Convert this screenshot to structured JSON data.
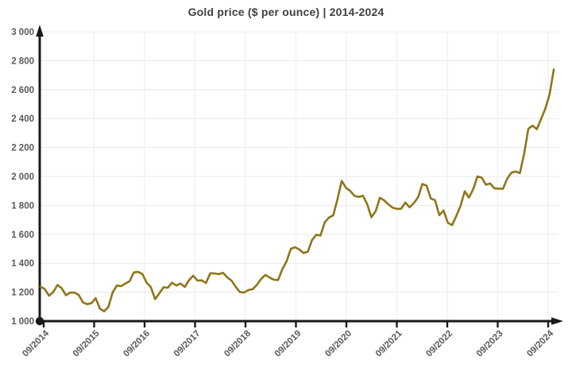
{
  "title": "Gold price ($ per ounce) | 2014-2024",
  "colors": {
    "line": "#8e7618",
    "title_text": "#404040",
    "tick_label": "#595959",
    "axis": "#1a1a1a",
    "h_grid": "#e8e8e8",
    "v_grid": "#eeeeee",
    "background": "#ffffff"
  },
  "chart_data": {
    "type": "line",
    "title": "Gold price ($ per ounce) | 2014-2024",
    "xlabel": "",
    "ylabel": "",
    "ylim": [
      1000,
      3000
    ],
    "y_step": 200,
    "y_tick_labels": [
      "1 000",
      "1 200",
      "1 400",
      "1 600",
      "1 800",
      "2 000",
      "2 200",
      "2 400",
      "2 600",
      "2 800",
      "3 000"
    ],
    "x_tick_labels": [
      "09/2014",
      "09/2015",
      "09/2016",
      "09/2017",
      "09/2018",
      "09/2019",
      "09/2020",
      "09/2021",
      "09/2022",
      "09/2023",
      "09/2024"
    ],
    "x_interval": "monthly",
    "x_start": "09/2014",
    "x_end": "10/2024",
    "grid": true,
    "legend_position": "none",
    "series": [
      {
        "name": "Gold price ($ per ounce)",
        "values": [
          1238,
          1222,
          1176,
          1201,
          1250,
          1227,
          1179,
          1197,
          1198,
          1181,
          1130,
          1117,
          1124,
          1159,
          1086,
          1068,
          1097,
          1199,
          1246,
          1242,
          1260,
          1276,
          1337,
          1340,
          1326,
          1266,
          1236,
          1152,
          1192,
          1234,
          1231,
          1266,
          1246,
          1260,
          1236,
          1283,
          1314,
          1280,
          1282,
          1264,
          1331,
          1330,
          1325,
          1334,
          1303,
          1281,
          1238,
          1201,
          1198,
          1215,
          1221,
          1250,
          1292,
          1320,
          1301,
          1286,
          1284,
          1359,
          1413,
          1500,
          1511,
          1495,
          1471,
          1479,
          1561,
          1597,
          1592,
          1683,
          1716,
          1732,
          1843,
          1969,
          1922,
          1900,
          1866,
          1858,
          1867,
          1808,
          1718,
          1760,
          1853,
          1835,
          1807,
          1784,
          1776,
          1777,
          1820,
          1787,
          1816,
          1856,
          1948,
          1937,
          1848,
          1836,
          1732,
          1765,
          1681,
          1664,
          1726,
          1797,
          1898,
          1854,
          1913,
          2000,
          1992,
          1943,
          1951,
          1918,
          1916,
          1915,
          1984,
          2026,
          2034,
          2023,
          2158,
          2330,
          2351,
          2327,
          2398,
          2470,
          2568,
          2740
        ]
      }
    ]
  }
}
